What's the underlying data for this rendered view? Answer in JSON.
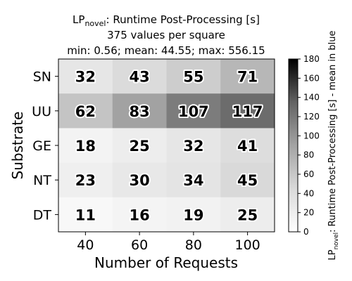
{
  "chart_data": {
    "type": "heatmap",
    "title": {
      "prefix": "LP",
      "subscript": "novel",
      "suffix": ": Runtime Post-Processing [s]",
      "line2": "375 values per square",
      "line3": "min: 0.56; mean: 44.55; max: 556.15"
    },
    "xlabel": "Number of Requests",
    "ylabel": "Substrate",
    "x": [
      "40",
      "60",
      "80",
      "100"
    ],
    "y": [
      "SN",
      "UU",
      "GE",
      "NT",
      "DT"
    ],
    "values": [
      [
        32,
        43,
        55,
        71
      ],
      [
        62,
        83,
        107,
        117
      ],
      [
        18,
        25,
        32,
        41
      ],
      [
        23,
        30,
        34,
        45
      ],
      [
        11,
        16,
        19,
        25
      ]
    ],
    "colorbar": {
      "min": 0,
      "max": 180,
      "ticks": [
        "0",
        "20",
        "40",
        "60",
        "80",
        "100",
        "120",
        "140",
        "160",
        "180"
      ],
      "colormap": "Greys",
      "label": {
        "prefix": "LP",
        "subscript": "novel",
        "suffix": ": Runtime Post-Processing [s] - mean in blue"
      }
    }
  }
}
